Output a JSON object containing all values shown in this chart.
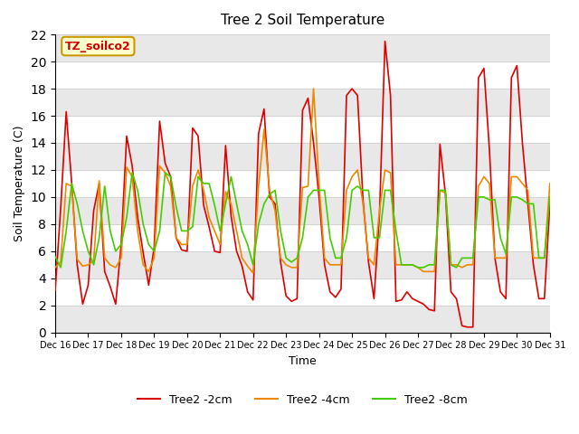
{
  "title": "Tree 2 Soil Temperature",
  "xlabel": "Time",
  "ylabel": "Soil Temperature (C)",
  "annotation_text": "TZ_soilco2",
  "annotation_bg": "#ffffcc",
  "annotation_border": "#cc9900",
  "ylim": [
    0,
    22
  ],
  "xlim": [
    0,
    360
  ],
  "x_tick_labels": [
    "Dec 16",
    "Dec 17",
    "Dec 18",
    "Dec 19",
    "Dec 20",
    "Dec 21",
    "Dec 22",
    "Dec 23",
    "Dec 24",
    "Dec 25",
    "Dec 26",
    "Dec 27",
    "Dec 28",
    "Dec 29",
    "Dec 30",
    "Dec 31"
  ],
  "x_tick_positions": [
    0,
    24,
    48,
    72,
    96,
    120,
    144,
    168,
    192,
    216,
    240,
    264,
    288,
    312,
    336,
    360
  ],
  "colors": {
    "2cm": "#dd0000",
    "4cm": "#ee8800",
    "8cm": "#44cc00"
  },
  "legend_labels": [
    "Tree2 -2cm",
    "Tree2 -4cm",
    "Tree2 -8cm"
  ],
  "grid_color": "#cccccc",
  "series_2cm_x": [
    0,
    4,
    8,
    12,
    16,
    20,
    24,
    28,
    32,
    36,
    40,
    44,
    48,
    52,
    56,
    60,
    64,
    68,
    72,
    76,
    80,
    84,
    88,
    92,
    96,
    100,
    104,
    108,
    112,
    116,
    120,
    124,
    128,
    132,
    136,
    140,
    144,
    148,
    152,
    156,
    160,
    164,
    168,
    172,
    176,
    180,
    184,
    188,
    192,
    196,
    200,
    204,
    208,
    212,
    216,
    220,
    224,
    228,
    232,
    236,
    240,
    244,
    248,
    252,
    256,
    260,
    264,
    268,
    272,
    276,
    280,
    284,
    288,
    292,
    296,
    300,
    304,
    308,
    312,
    316,
    320,
    324,
    328,
    332,
    336,
    340,
    344,
    348,
    352,
    356,
    360
  ],
  "series_2cm_y": [
    3.1,
    9.2,
    16.3,
    11.0,
    5.0,
    2.1,
    3.5,
    9.0,
    11.0,
    4.5,
    3.4,
    2.1,
    6.5,
    14.5,
    12.3,
    8.5,
    5.9,
    3.5,
    6.3,
    15.6,
    12.5,
    11.5,
    7.0,
    6.1,
    6.0,
    15.1,
    14.5,
    9.4,
    7.8,
    6.0,
    5.9,
    13.8,
    8.6,
    6.0,
    4.9,
    3.0,
    2.4,
    14.7,
    16.5,
    10.0,
    9.5,
    5.2,
    2.7,
    2.3,
    2.5,
    16.4,
    17.3,
    14.0,
    10.0,
    5.0,
    3.0,
    2.6,
    3.2,
    17.5,
    18.0,
    17.5,
    9.8,
    5.2,
    2.5,
    8.7,
    21.5,
    17.5,
    2.3,
    2.4,
    3.0,
    2.5,
    2.3,
    2.1,
    1.7,
    1.6,
    13.9,
    10.2,
    3.0,
    2.5,
    0.5,
    0.4,
    0.4,
    18.8,
    19.5,
    13.5,
    5.5,
    3.0,
    2.5,
    18.8,
    19.7,
    14.0,
    9.5,
    5.0,
    2.5,
    2.5,
    9.5,
    9.8,
    2.5
  ],
  "series_4cm_x": [
    0,
    4,
    8,
    12,
    16,
    20,
    24,
    28,
    32,
    36,
    40,
    44,
    48,
    52,
    56,
    60,
    64,
    68,
    72,
    76,
    80,
    84,
    88,
    92,
    96,
    100,
    104,
    108,
    112,
    116,
    120,
    124,
    128,
    132,
    136,
    140,
    144,
    148,
    152,
    156,
    160,
    164,
    168,
    172,
    176,
    180,
    184,
    188,
    192,
    196,
    200,
    204,
    208,
    212,
    216,
    220,
    224,
    228,
    232,
    236,
    240,
    244,
    248,
    252,
    256,
    260,
    264,
    268,
    272,
    276,
    280,
    284,
    288,
    292,
    296,
    300,
    304,
    308,
    312,
    316,
    320,
    324,
    328,
    332,
    336,
    340,
    344,
    348,
    352,
    356,
    360
  ],
  "series_4cm_y": [
    4.8,
    5.2,
    11.0,
    10.8,
    5.4,
    4.9,
    5.0,
    5.3,
    11.2,
    5.5,
    5.0,
    4.8,
    5.5,
    12.2,
    11.5,
    7.5,
    5.0,
    4.5,
    5.5,
    12.3,
    11.8,
    10.8,
    7.0,
    6.5,
    6.5,
    10.8,
    12.0,
    10.5,
    8.5,
    7.5,
    6.5,
    10.4,
    9.5,
    7.5,
    5.5,
    4.9,
    4.4,
    10.8,
    15.0,
    10.5,
    9.0,
    5.5,
    5.0,
    4.8,
    4.8,
    10.7,
    10.8,
    18.0,
    11.0,
    5.5,
    5.0,
    5.0,
    5.0,
    10.5,
    11.5,
    12.0,
    9.5,
    5.5,
    5.0,
    9.0,
    12.0,
    11.8,
    5.0,
    5.0,
    5.0,
    5.0,
    4.8,
    4.5,
    4.5,
    4.5,
    10.5,
    10.3,
    5.0,
    5.0,
    4.8,
    5.0,
    5.0,
    10.8,
    11.5,
    11.0,
    5.5,
    5.5,
    5.5,
    11.5,
    11.5,
    11.0,
    10.5,
    5.5,
    5.5,
    5.5,
    11.0,
    10.0,
    5.8
  ],
  "series_8cm_x": [
    0,
    4,
    8,
    12,
    16,
    20,
    24,
    28,
    32,
    36,
    40,
    44,
    48,
    52,
    56,
    60,
    64,
    68,
    72,
    76,
    80,
    84,
    88,
    92,
    96,
    100,
    104,
    108,
    112,
    116,
    120,
    124,
    128,
    132,
    136,
    140,
    144,
    148,
    152,
    156,
    160,
    164,
    168,
    172,
    176,
    180,
    184,
    188,
    192,
    196,
    200,
    204,
    208,
    212,
    216,
    220,
    224,
    228,
    232,
    236,
    240,
    244,
    248,
    252,
    256,
    260,
    264,
    268,
    272,
    276,
    280,
    284,
    288,
    292,
    296,
    300,
    304,
    308,
    312,
    316,
    320,
    324,
    328,
    332,
    336,
    340,
    344,
    348,
    352,
    356,
    360
  ],
  "series_8cm_y": [
    5.6,
    4.8,
    7.5,
    11.0,
    9.5,
    7.5,
    6.0,
    5.0,
    7.0,
    10.8,
    7.5,
    6.0,
    6.5,
    8.5,
    11.8,
    10.5,
    8.0,
    6.5,
    6.0,
    7.5,
    11.8,
    11.5,
    9.3,
    7.5,
    7.5,
    7.8,
    11.5,
    11.0,
    11.0,
    9.4,
    7.5,
    9.5,
    11.5,
    9.5,
    7.5,
    6.5,
    5.0,
    8.0,
    9.5,
    10.2,
    10.5,
    7.5,
    5.5,
    5.2,
    5.5,
    7.0,
    10.0,
    10.5,
    10.5,
    10.5,
    7.0,
    5.5,
    5.5,
    7.0,
    10.5,
    10.8,
    10.5,
    10.5,
    7.0,
    7.0,
    10.5,
    10.5,
    7.5,
    5.0,
    5.0,
    5.0,
    4.8,
    4.8,
    5.0,
    5.0,
    10.5,
    10.5,
    5.0,
    4.8,
    5.5,
    5.5,
    5.5,
    10.0,
    10.0,
    9.8,
    9.8,
    7.0,
    5.8,
    10.0,
    10.0,
    9.8,
    9.5,
    9.5,
    5.5,
    5.5,
    10.0,
    9.5,
    6.2
  ]
}
